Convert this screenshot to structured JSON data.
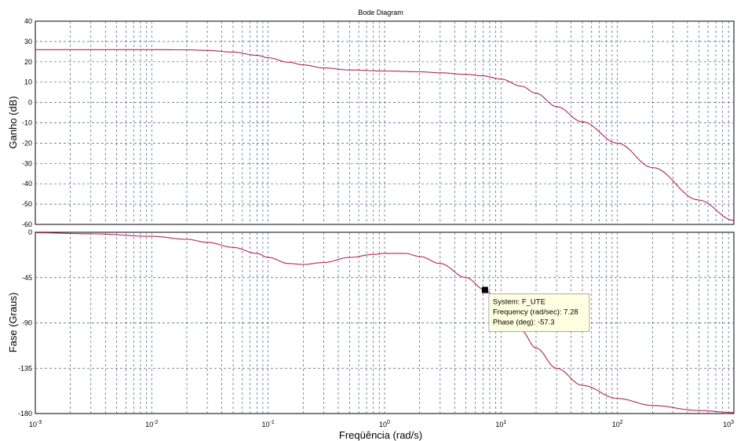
{
  "chart_data": [
    {
      "type": "line",
      "panel": "magnitude",
      "title": "Bode Diagram",
      "xlabel": "Freqüência (rad/s)",
      "ylabel": "Ganho (dB)",
      "xscale": "log",
      "xlim": [
        0.001,
        1000
      ],
      "ylim": [
        -60,
        40
      ],
      "yticks": [
        "40",
        "30",
        "20",
        "10",
        "0",
        "-10",
        "-20",
        "-30",
        "-40",
        "-50",
        "-60"
      ],
      "grid": true,
      "series": [
        {
          "color": "#b0284a",
          "x": [
            0.001,
            0.003,
            0.01,
            0.02,
            0.03,
            0.05,
            0.08,
            0.1,
            0.15,
            0.2,
            0.3,
            0.5,
            1,
            2,
            3,
            5,
            7,
            10,
            15,
            20,
            30,
            50,
            100,
            200,
            500,
            1000
          ],
          "y": [
            26,
            26,
            26,
            25.9,
            25.6,
            24.8,
            23.2,
            22,
            19.8,
            18.5,
            17,
            16,
            15.5,
            15.1,
            14.6,
            13.8,
            13.1,
            11.5,
            8,
            4.5,
            -2,
            -9.5,
            -20,
            -32,
            -48,
            -58
          ]
        }
      ]
    },
    {
      "type": "line",
      "panel": "phase",
      "xlabel": "Freqüência (rad/s)",
      "ylabel": "Fase (Graus)",
      "xscale": "log",
      "xlim": [
        0.001,
        1000
      ],
      "ylim": [
        -180,
        0
      ],
      "xticks": [
        "10-3",
        "10-2",
        "10-1",
        "100",
        "101",
        "102",
        "103"
      ],
      "yticks": [
        "0",
        "-45",
        "-90",
        "-135",
        "-180"
      ],
      "grid": true,
      "series": [
        {
          "color": "#b0284a",
          "x": [
            0.001,
            0.003,
            0.01,
            0.02,
            0.03,
            0.05,
            0.08,
            0.1,
            0.15,
            0.2,
            0.3,
            0.5,
            0.8,
            1,
            1.5,
            2,
            3,
            5,
            7.28,
            10,
            15,
            20,
            30,
            50,
            100,
            200,
            500,
            1000
          ],
          "y": [
            -0.5,
            -1.5,
            -4,
            -7,
            -10,
            -15,
            -21,
            -25,
            -31,
            -32,
            -30,
            -25,
            -22,
            -21,
            -21,
            -24,
            -31,
            -45,
            -57.3,
            -73,
            -98,
            -115,
            -135,
            -152,
            -165,
            -172,
            -177,
            -179
          ]
        }
      ],
      "annotations": [
        {
          "marker": {
            "x": 7.28,
            "y": -57.3
          },
          "lines": [
            "System: F_UTE",
            "Frequency (rad/sec): 7.28",
            "Phase (deg): -57.3"
          ]
        }
      ]
    }
  ]
}
